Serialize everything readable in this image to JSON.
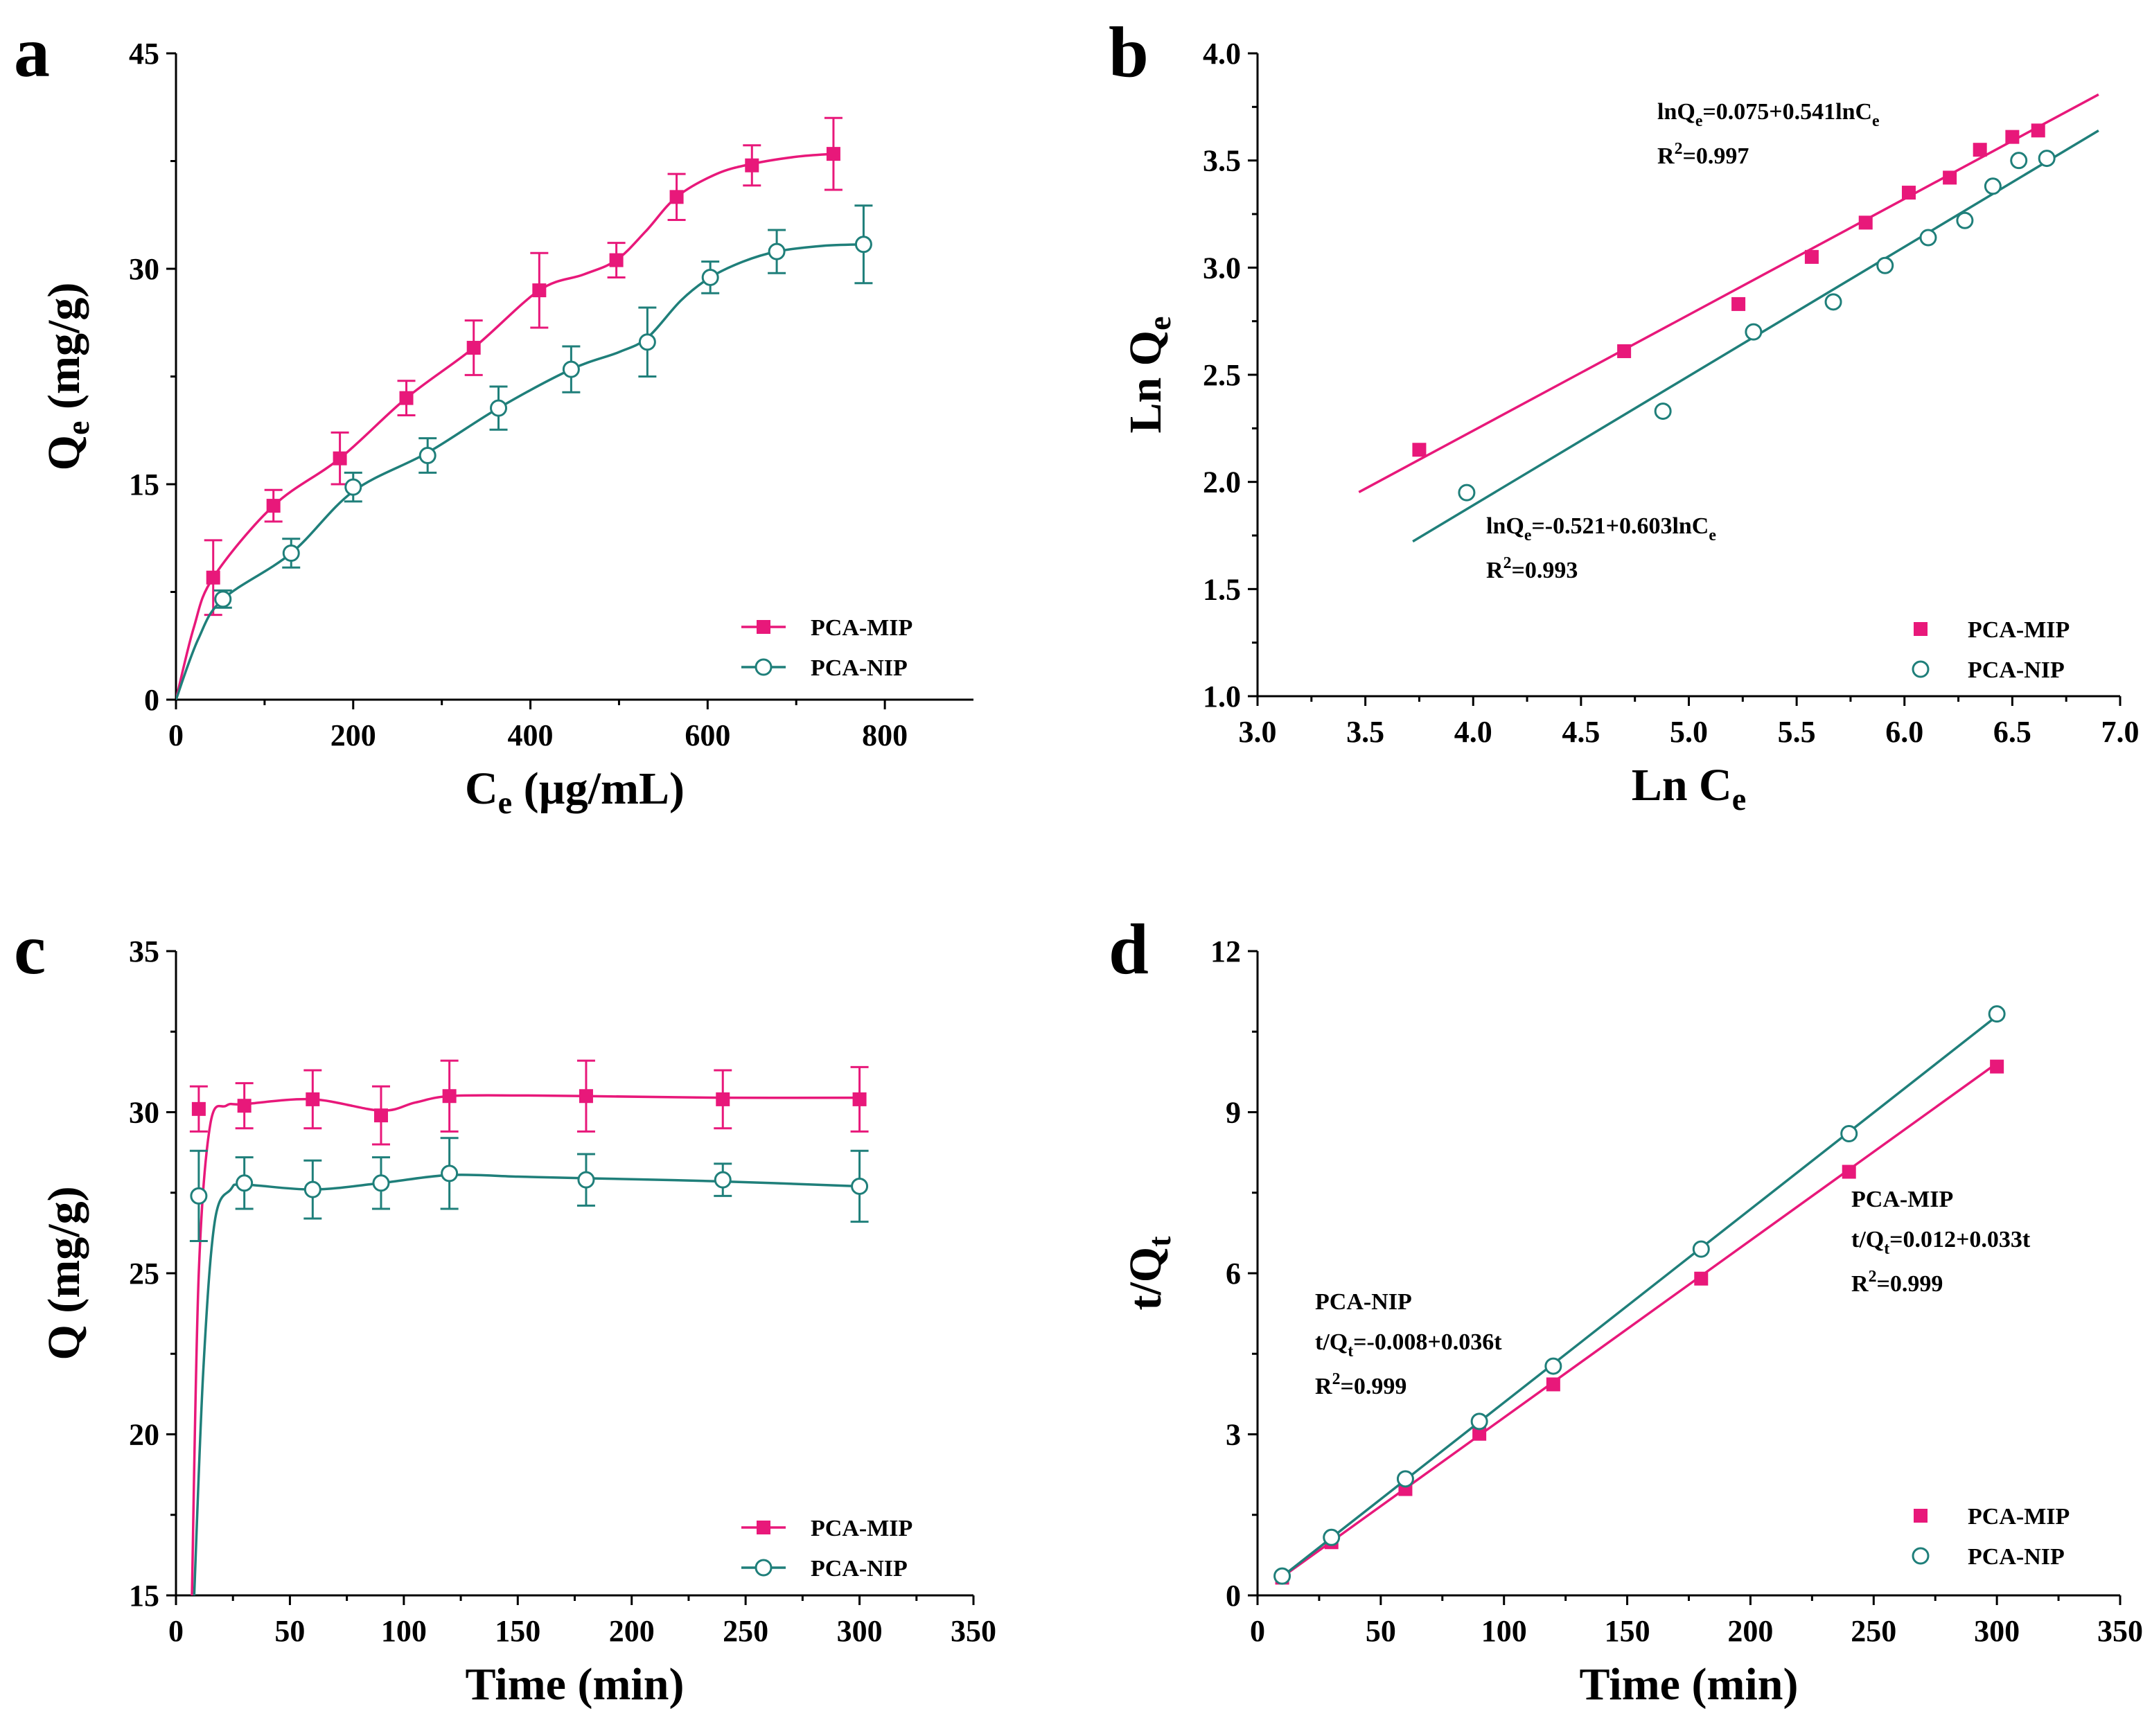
{
  "colors": {
    "mip": "#e8187a",
    "nip": "#1f7f7a",
    "axis": "#000000"
  },
  "chart_data": [
    {
      "panel": "a",
      "type": "line",
      "ylabel_main": "Q",
      "ylabel_sub": "e",
      "ylabel_rest": " (mg/g)",
      "xlabel_main": "C",
      "xlabel_sub": "e",
      "xlabel_rest": " (µg/mL)",
      "xlim": [
        0,
        900
      ],
      "ylim": [
        0,
        45
      ],
      "xticks": [
        0,
        200,
        400,
        600,
        800
      ],
      "yticks": [
        0,
        15,
        30,
        45
      ],
      "legend_placement": "bottom-right",
      "series": [
        {
          "name": "PCA-MIP",
          "marker": "filled-square",
          "x": [
            42,
            110,
            185,
            260,
            336,
            410,
            497,
            565,
            650,
            742
          ],
          "y": [
            8.5,
            13.5,
            16.8,
            21.0,
            24.5,
            28.5,
            30.6,
            35.0,
            37.2,
            38.0
          ],
          "err": [
            2.6,
            1.1,
            1.8,
            1.2,
            1.9,
            2.6,
            1.2,
            1.6,
            1.4,
            2.5
          ],
          "curve": [
            [
              0,
              0
            ],
            [
              20,
              5
            ],
            [
              42,
              8.5
            ],
            [
              110,
              13.5
            ],
            [
              185,
              16.8
            ],
            [
              260,
              21
            ],
            [
              336,
              24.5
            ],
            [
              410,
              28.5
            ],
            [
              460,
              29.6
            ],
            [
              497,
              30.6
            ],
            [
              530,
              32.6
            ],
            [
              565,
              35
            ],
            [
              610,
              36.6
            ],
            [
              650,
              37.3
            ],
            [
              700,
              37.8
            ],
            [
              742,
              38
            ]
          ]
        },
        {
          "name": "PCA-NIP",
          "marker": "open-circle",
          "x": [
            53,
            130,
            200,
            284,
            364,
            446,
            532,
            603,
            678,
            776
          ],
          "y": [
            7.0,
            10.2,
            14.8,
            17.0,
            20.3,
            23.0,
            24.9,
            29.4,
            31.2,
            31.7
          ],
          "err": [
            0.6,
            1.0,
            1.0,
            1.2,
            1.5,
            1.6,
            2.4,
            1.1,
            1.5,
            2.7
          ],
          "curve": [
            [
              0,
              0
            ],
            [
              25,
              4.2
            ],
            [
              53,
              7
            ],
            [
              130,
              10.2
            ],
            [
              200,
              14.5
            ],
            [
              284,
              17.2
            ],
            [
              364,
              20.3
            ],
            [
              446,
              23
            ],
            [
              500,
              24.2
            ],
            [
              532,
              25.2
            ],
            [
              570,
              27.8
            ],
            [
              603,
              29.4
            ],
            [
              640,
              30.5
            ],
            [
              678,
              31.2
            ],
            [
              730,
              31.6
            ],
            [
              776,
              31.7
            ]
          ]
        }
      ]
    },
    {
      "panel": "b",
      "type": "scatter",
      "ylabel_main": "Ln Q",
      "ylabel_sub": "e",
      "ylabel_rest": "",
      "xlabel_main": "Ln C",
      "xlabel_sub": "e",
      "xlabel_rest": "",
      "xlim": [
        3.0,
        7.0
      ],
      "ylim": [
        1.0,
        4.0
      ],
      "xticks": [
        "3.0",
        "3.5",
        "4.0",
        "4.5",
        "5.0",
        "5.5",
        "6.0",
        "6.5",
        "7.0"
      ],
      "yticks": [
        "1.0",
        "1.5",
        "2.0",
        "2.5",
        "3.0",
        "3.5",
        "4.0"
      ],
      "legend_placement": "bottom-right",
      "series": [
        {
          "name": "PCA-MIP",
          "marker": "filled-square",
          "x": [
            3.75,
            4.7,
            5.23,
            5.57,
            5.82,
            6.02,
            6.21,
            6.35,
            6.5,
            6.62
          ],
          "y": [
            2.15,
            2.61,
            2.83,
            3.05,
            3.21,
            3.35,
            3.42,
            3.55,
            3.61,
            3.64
          ],
          "fit_x": [
            3.47,
            6.9
          ]
        },
        {
          "name": "PCA-NIP",
          "marker": "open-circle",
          "x": [
            3.97,
            4.88,
            5.3,
            5.67,
            5.91,
            6.11,
            6.28,
            6.41,
            6.53,
            6.66
          ],
          "y": [
            1.95,
            2.33,
            2.7,
            2.84,
            3.01,
            3.14,
            3.22,
            3.38,
            3.5,
            3.51
          ],
          "fit_x": [
            3.72,
            6.9
          ]
        }
      ],
      "fits": [
        {
          "series": "PCA-MIP",
          "intercept": 0.075,
          "slope": 0.541,
          "eq_a": "lnQ",
          "eq_sub": "e",
          "eq_b": "=0.075+0.541lnC",
          "eq_sub2": "e",
          "r2_a": "R",
          "r2_sup": "2",
          "r2_b": "=0.997"
        },
        {
          "series": "PCA-NIP",
          "intercept": -0.521,
          "slope": 0.603,
          "eq_a": "lnQ",
          "eq_sub": "e",
          "eq_b": "=-0.521+0.603lnC",
          "eq_sub2": "e",
          "r2_a": "R",
          "r2_sup": "2",
          "r2_b": "=0.993"
        }
      ]
    },
    {
      "panel": "c",
      "type": "line",
      "ylabel_main": "Q (mg/g)",
      "ylabel_sub": "",
      "ylabel_rest": "",
      "xlabel_main": "Time (min)",
      "xlabel_sub": "",
      "xlabel_rest": "",
      "xlim": [
        0,
        350
      ],
      "ylim": [
        15,
        35
      ],
      "xticks": [
        0,
        50,
        100,
        150,
        200,
        250,
        300,
        350
      ],
      "yticks": [
        15,
        20,
        25,
        30,
        35
      ],
      "legend_placement": "bottom-right",
      "series": [
        {
          "name": "PCA-MIP",
          "marker": "filled-square",
          "x": [
            10,
            30,
            60,
            90,
            120,
            180,
            240,
            300
          ],
          "y": [
            30.1,
            30.2,
            30.4,
            29.9,
            30.5,
            30.5,
            30.4,
            30.4
          ],
          "err": [
            0.7,
            0.7,
            0.9,
            0.9,
            1.1,
            1.1,
            0.9,
            1.0
          ],
          "curve": [
            [
              7,
              15
            ],
            [
              10,
              25
            ],
            [
              15,
              29.6
            ],
            [
              22,
              30.2
            ],
            [
              30,
              30.25
            ],
            [
              60,
              30.4
            ],
            [
              90,
              30.05
            ],
            [
              105,
              30.3
            ],
            [
              120,
              30.5
            ],
            [
              150,
              30.52
            ],
            [
              180,
              30.5
            ],
            [
              240,
              30.45
            ],
            [
              300,
              30.45
            ]
          ]
        },
        {
          "name": "PCA-NIP",
          "marker": "open-circle",
          "x": [
            10,
            30,
            60,
            90,
            120,
            180,
            240,
            300
          ],
          "y": [
            27.4,
            27.8,
            27.6,
            27.8,
            28.1,
            27.9,
            27.9,
            27.7
          ],
          "err": [
            1.4,
            0.8,
            0.9,
            0.8,
            1.1,
            0.8,
            0.5,
            1.1
          ],
          "curve": [
            [
              8,
              15
            ],
            [
              12,
              22
            ],
            [
              17,
              26.6
            ],
            [
              24,
              27.6
            ],
            [
              30,
              27.75
            ],
            [
              60,
              27.6
            ],
            [
              90,
              27.8
            ],
            [
              120,
              28.05
            ],
            [
              150,
              28.0
            ],
            [
              180,
              27.95
            ],
            [
              240,
              27.85
            ],
            [
              300,
              27.7
            ]
          ]
        }
      ]
    },
    {
      "panel": "d",
      "type": "scatter",
      "ylabel_main": "t/Q",
      "ylabel_sub": "t",
      "ylabel_rest": "",
      "xlabel_main": "Time (min)",
      "xlabel_sub": "",
      "xlabel_rest": "",
      "xlim": [
        0,
        350
      ],
      "ylim": [
        0,
        12
      ],
      "xticks": [
        0,
        50,
        100,
        150,
        200,
        250,
        300,
        350
      ],
      "yticks": [
        0,
        3,
        6,
        9,
        12
      ],
      "legend_placement": "bottom-right",
      "series": [
        {
          "name": "PCA-MIP",
          "marker": "filled-square",
          "x": [
            10,
            30,
            60,
            90,
            120,
            180,
            240,
            300
          ],
          "y": [
            0.33,
            0.99,
            1.98,
            3.01,
            3.93,
            5.9,
            7.89,
            9.85
          ],
          "fit_x": [
            10,
            300
          ]
        },
        {
          "name": "PCA-NIP",
          "marker": "open-circle",
          "x": [
            10,
            30,
            60,
            90,
            120,
            180,
            240,
            300
          ],
          "y": [
            0.36,
            1.08,
            2.17,
            3.24,
            4.27,
            6.45,
            8.6,
            10.83
          ],
          "fit_x": [
            10,
            300
          ]
        }
      ],
      "fits": [
        {
          "series": "PCA-MIP",
          "intercept": 0.012,
          "slope": 0.033,
          "name_label": "PCA-MIP",
          "eq_a": "t/Q",
          "eq_sub": "t",
          "eq_b": "=0.012+0.033t",
          "eq_sub2": "",
          "r2_a": "R",
          "r2_sup": "2",
          "r2_b": "=0.999"
        },
        {
          "series": "PCA-NIP",
          "intercept": -0.008,
          "slope": 0.036,
          "name_label": "PCA-NIP",
          "eq_a": "t/Q",
          "eq_sub": "t",
          "eq_b": "=-0.008+0.036t",
          "eq_sub2": "",
          "r2_a": "R",
          "r2_sup": "2",
          "r2_b": "=0.999"
        }
      ]
    }
  ]
}
